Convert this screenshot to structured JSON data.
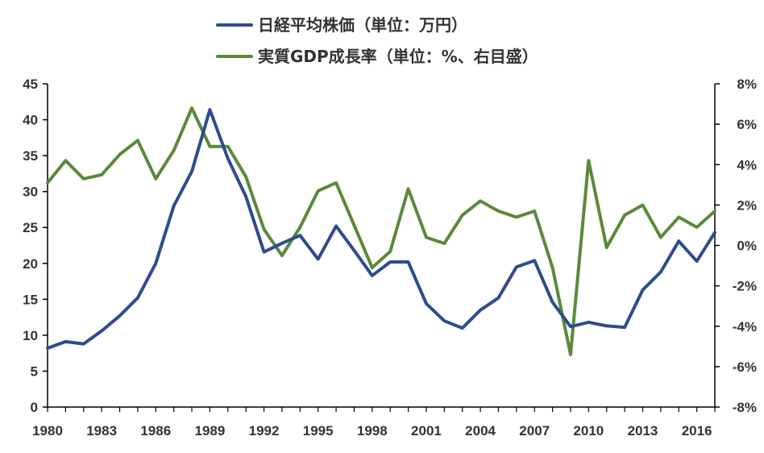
{
  "chart_data": {
    "type": "line",
    "title": "",
    "legend_position": "top-center",
    "grid": false,
    "x": [
      1980,
      1981,
      1982,
      1983,
      1984,
      1985,
      1986,
      1987,
      1988,
      1989,
      1990,
      1991,
      1992,
      1993,
      1994,
      1995,
      1996,
      1997,
      1998,
      1999,
      2000,
      2001,
      2002,
      2003,
      2004,
      2005,
      2006,
      2007,
      2008,
      2009,
      2010,
      2011,
      2012,
      2013,
      2014,
      2015,
      2016,
      2017
    ],
    "xlim": [
      1980,
      2017
    ],
    "x_tick_labels": [
      "1980",
      "1983",
      "1986",
      "1989",
      "1992",
      "1995",
      "1998",
      "2001",
      "2004",
      "2007",
      "2010",
      "2013",
      "2016"
    ],
    "y_left": {
      "range": [
        0,
        45
      ],
      "tick_labels": [
        "0",
        "5",
        "10",
        "15",
        "20",
        "25",
        "30",
        "35",
        "40",
        "45"
      ]
    },
    "y_right": {
      "range": [
        -8,
        8
      ],
      "tick_labels": [
        "-8%",
        "-6%",
        "-4%",
        "-2%",
        "0%",
        "2%",
        "4%",
        "6%",
        "8%"
      ]
    },
    "series": [
      {
        "name": "日経平均株価（単位：万円）",
        "axis": "left",
        "color": "#2F4B8F",
        "values": [
          8.2,
          9.1,
          8.8,
          10.6,
          12.7,
          15.2,
          20.0,
          28.0,
          32.8,
          41.4,
          34.6,
          29.3,
          21.6,
          22.8,
          23.9,
          20.6,
          25.2,
          21.8,
          18.3,
          20.2,
          20.2,
          14.4,
          12.0,
          11.0,
          13.5,
          15.2,
          19.5,
          20.4,
          14.6,
          11.2,
          11.8,
          11.3,
          11.1,
          16.3,
          18.8,
          23.1,
          20.3,
          24.3
        ]
      },
      {
        "name": "実質GDP成長率（単位：%、右目盛）",
        "axis": "right",
        "color": "#5A8A3A",
        "values": [
          3.1,
          4.2,
          3.3,
          3.5,
          4.5,
          5.2,
          3.3,
          4.7,
          6.8,
          4.9,
          4.9,
          3.4,
          0.8,
          -0.5,
          0.9,
          2.7,
          3.1,
          1.0,
          -1.1,
          -0.3,
          2.8,
          0.4,
          0.1,
          1.5,
          2.2,
          1.7,
          1.4,
          1.7,
          -1.1,
          -5.4,
          4.2,
          -0.1,
          1.5,
          2.0,
          0.4,
          1.4,
          0.9,
          1.7
        ]
      }
    ]
  }
}
